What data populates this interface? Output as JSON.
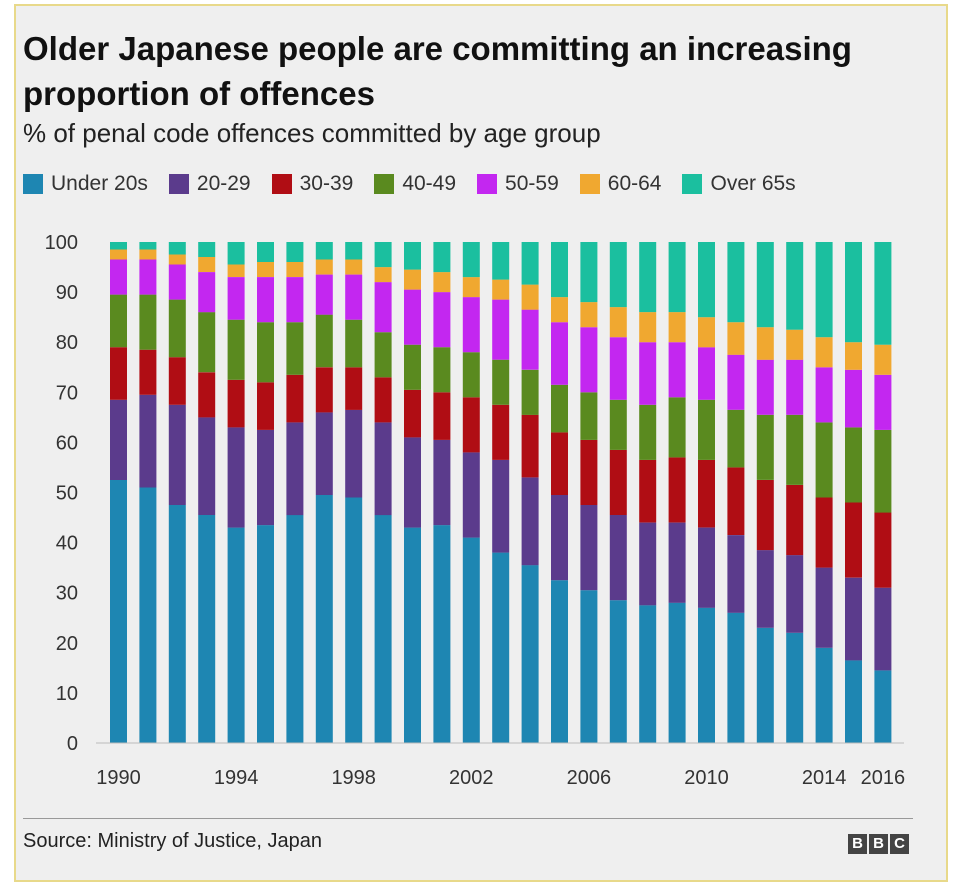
{
  "title": "Older Japanese people are committing an increasing proportion of offences",
  "subtitle": "% of penal code offences committed by age group",
  "source": "Source: Ministry of Justice, Japan",
  "logo": [
    "B",
    "B",
    "C"
  ],
  "chart_data": {
    "type": "bar",
    "stacked": true,
    "title": "Older Japanese people are committing an increasing proportion of offences",
    "subtitle": "% of penal code offences committed by age group",
    "xlabel": "",
    "ylabel": "",
    "ylim": [
      0,
      100
    ],
    "yticks": [
      0,
      10,
      20,
      30,
      40,
      50,
      60,
      70,
      80,
      90,
      100
    ],
    "categories": [
      1990,
      1991,
      1992,
      1993,
      1994,
      1995,
      1996,
      1997,
      1998,
      1999,
      2000,
      2001,
      2002,
      2003,
      2004,
      2005,
      2006,
      2007,
      2008,
      2009,
      2010,
      2011,
      2012,
      2013,
      2014,
      2015,
      2016
    ],
    "xtick_labels": [
      "1990",
      "1994",
      "1998",
      "2002",
      "2006",
      "2010",
      "2014",
      "2016"
    ],
    "legend_position": "top",
    "series": [
      {
        "name": "Under 20s",
        "color": "#1e86b2",
        "values": [
          52.5,
          51,
          47.5,
          45.5,
          43,
          43.5,
          45.5,
          49.5,
          49,
          45.5,
          43,
          43.5,
          41,
          38,
          35.5,
          32.5,
          30.5,
          28.5,
          27.5,
          28,
          27,
          26,
          23,
          22,
          19,
          16.5,
          14.5
        ]
      },
      {
        "name": "20-29",
        "color": "#5b3b8c",
        "values": [
          16,
          18.5,
          20,
          19.5,
          20,
          19,
          18.5,
          16.5,
          17.5,
          18.5,
          18,
          17,
          17,
          18.5,
          17.5,
          17,
          17,
          17,
          16.5,
          16,
          16,
          15.5,
          15.5,
          15.5,
          16,
          16.5,
          16.5
        ]
      },
      {
        "name": "30-39",
        "color": "#b00d14",
        "values": [
          10.5,
          9,
          9.5,
          9,
          9.5,
          9.5,
          9.5,
          9,
          8.5,
          9,
          9.5,
          9.5,
          11,
          11,
          12.5,
          12.5,
          13,
          13,
          12.5,
          13,
          13.5,
          13.5,
          14,
          14,
          14,
          15,
          15
        ]
      },
      {
        "name": "40-49",
        "color": "#5a8a1f",
        "values": [
          10.5,
          11,
          11.5,
          12,
          12,
          12,
          10.5,
          10.5,
          9.5,
          9,
          9,
          9,
          9,
          9,
          9,
          9.5,
          9.5,
          10,
          11,
          12,
          12,
          11.5,
          13,
          14,
          15,
          15,
          16.5
        ]
      },
      {
        "name": "50-59",
        "color": "#c327f0",
        "values": [
          7,
          7,
          7,
          8,
          8.5,
          9,
          9,
          8,
          9,
          10,
          11,
          11,
          11,
          12,
          12,
          12.5,
          13,
          12.5,
          12.5,
          11,
          10.5,
          11,
          11,
          11,
          11,
          11.5,
          11
        ]
      },
      {
        "name": "60-64",
        "color": "#f0a830",
        "values": [
          2,
          2,
          2,
          3,
          2.5,
          3,
          3,
          3,
          3,
          3,
          4,
          4,
          4,
          4,
          5,
          5,
          5,
          6,
          6,
          6,
          6,
          6.5,
          6.5,
          6,
          6,
          5.5,
          6
        ]
      },
      {
        "name": "Over 65s",
        "color": "#1bbf9f",
        "values": [
          1.5,
          1.5,
          2.5,
          3,
          4.5,
          4,
          4,
          3.5,
          3.5,
          5,
          5.5,
          6,
          7,
          7.5,
          8.5,
          11,
          12,
          13,
          14,
          14,
          15,
          16,
          17,
          17.5,
          19,
          20,
          20.5
        ]
      }
    ]
  }
}
